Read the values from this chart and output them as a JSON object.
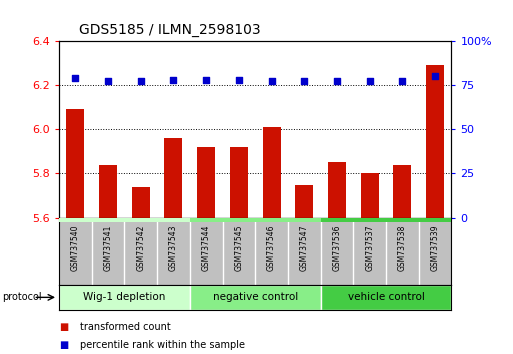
{
  "title": "GDS5185 / ILMN_2598103",
  "samples": [
    "GSM737540",
    "GSM737541",
    "GSM737542",
    "GSM737543",
    "GSM737544",
    "GSM737545",
    "GSM737546",
    "GSM737547",
    "GSM737536",
    "GSM737537",
    "GSM737538",
    "GSM737539"
  ],
  "bar_values": [
    6.09,
    5.84,
    5.74,
    5.96,
    5.92,
    5.92,
    6.01,
    5.75,
    5.85,
    5.8,
    5.84,
    6.29
  ],
  "dot_values": [
    79,
    77,
    77,
    78,
    78,
    78,
    77,
    77,
    77,
    77,
    77,
    80
  ],
  "bar_color": "#cc1100",
  "dot_color": "#0000cc",
  "ylim_left": [
    5.6,
    6.4
  ],
  "ylim_right": [
    0,
    100
  ],
  "yticks_left": [
    5.6,
    5.8,
    6.0,
    6.2,
    6.4
  ],
  "yticks_right": [
    0,
    25,
    50,
    75,
    100
  ],
  "groups": [
    {
      "label": "Wig-1 depletion",
      "start": 0,
      "end": 4,
      "color": "#ccffcc"
    },
    {
      "label": "negative control",
      "start": 4,
      "end": 8,
      "color": "#88ee88"
    },
    {
      "label": "vehicle control",
      "start": 8,
      "end": 12,
      "color": "#44cc44"
    }
  ],
  "protocol_label": "protocol",
  "legend_items": [
    {
      "label": "transformed count",
      "color": "#cc1100"
    },
    {
      "label": "percentile rank within the sample",
      "color": "#0000cc"
    }
  ],
  "sample_bg": "#c0c0c0",
  "sample_divider": "#ffffff"
}
